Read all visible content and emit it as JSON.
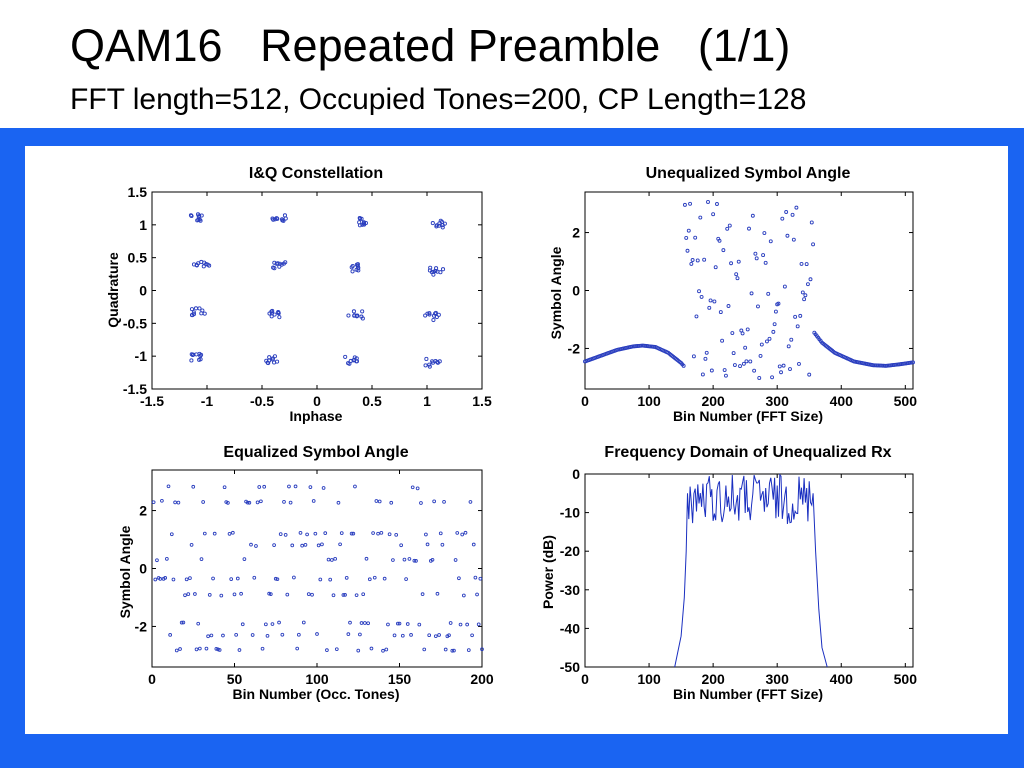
{
  "slide": {
    "title": "QAM16   Repeated Preamble   (1/1)",
    "subtitle": "FFT length=512, Occupied Tones=200, CP Length=128"
  },
  "colors": {
    "frame": "#1a64f2",
    "marker": "#2b3fbf",
    "line": "#1a2fc0"
  },
  "chart_data": [
    {
      "type": "scatter",
      "title": "I&Q Constellation",
      "xlabel": "Inphase",
      "ylabel": "Quadrature",
      "xlim": [
        -1.5,
        1.5
      ],
      "ylim": [
        -1.5,
        1.5
      ],
      "xticks": [
        "-1.5",
        "-1",
        "-0.5",
        "0",
        "0.5",
        "1",
        "1.5"
      ],
      "yticks": [
        "1.5",
        "1",
        "0.5",
        "0",
        "-0.5",
        "-1",
        "-1.5"
      ],
      "grid": false,
      "points_per_cluster": 10,
      "clusters": [
        {
          "x": -1.1,
          "y": 1.1
        },
        {
          "x": -0.35,
          "y": 1.1
        },
        {
          "x": 0.4,
          "y": 1.05
        },
        {
          "x": 1.12,
          "y": 1.02
        },
        {
          "x": -1.05,
          "y": 0.38
        },
        {
          "x": -0.33,
          "y": 0.37
        },
        {
          "x": 0.35,
          "y": 0.35
        },
        {
          "x": 1.08,
          "y": 0.3
        },
        {
          "x": -1.08,
          "y": -0.33
        },
        {
          "x": -0.38,
          "y": -0.35
        },
        {
          "x": 0.35,
          "y": -0.37
        },
        {
          "x": 1.05,
          "y": -0.4
        },
        {
          "x": -1.1,
          "y": -1.02
        },
        {
          "x": -0.4,
          "y": -1.05
        },
        {
          "x": 0.32,
          "y": -1.07
        },
        {
          "x": 1.05,
          "y": -1.1
        }
      ]
    },
    {
      "type": "scatter",
      "title": "Unequalized Symbol Angle",
      "xlabel": "Bin Number (FFT Size)",
      "ylabel": "Symbol Angle",
      "xlim": [
        0,
        512
      ],
      "ylim": [
        -3.4,
        3.4
      ],
      "xticks": [
        "0",
        "100",
        "200",
        "300",
        "400",
        "500"
      ],
      "yticks": [
        "2",
        "0",
        "-2"
      ],
      "grid": false,
      "occupied_bins": [
        156,
        356
      ],
      "notes": "Smooth phase curve outside occupied band; randomly spread symbol angles in [-3.14, 3.14] within occupied band",
      "curve_x": [
        0,
        25,
        50,
        75,
        90,
        110,
        130,
        150,
        156,
        356,
        370,
        390,
        420,
        450,
        470,
        490,
        512
      ],
      "curve_y": [
        -2.45,
        -2.25,
        -2.05,
        -1.93,
        -1.9,
        -1.95,
        -2.15,
        -2.5,
        -2.65,
        -1.4,
        -1.8,
        -2.15,
        -2.45,
        -2.58,
        -2.6,
        -2.55,
        -2.48
      ]
    },
    {
      "type": "scatter",
      "title": "Equalized Symbol Angle",
      "xlabel": "Bin Number (Occ. Tones)",
      "ylabel": "Symbol Angle",
      "xlim": [
        0,
        200
      ],
      "ylim": [
        -3.4,
        3.4
      ],
      "xticks": [
        "0",
        "50",
        "100",
        "150",
        "200"
      ],
      "yticks": [
        "2",
        "0",
        "-2"
      ],
      "grid": false,
      "levels": [
        -2.8,
        -2.3,
        -1.9,
        -0.9,
        -0.35,
        0.3,
        0.8,
        1.2,
        2.3,
        2.8
      ],
      "points": 200
    },
    {
      "type": "line",
      "title": "Frequency Domain of Unequalized Rx",
      "xlabel": "Bin Number (FFT Size)",
      "ylabel": "Power (dB)",
      "xlim": [
        0,
        512
      ],
      "ylim": [
        -50,
        0
      ],
      "xticks": [
        "0",
        "100",
        "200",
        "300",
        "400",
        "500"
      ],
      "yticks": [
        "0",
        "-10",
        "-20",
        "-30",
        "-40",
        "-50"
      ],
      "grid": false,
      "band": [
        160,
        356
      ],
      "band_level_range_db": [
        -13,
        0
      ],
      "skirt_x": [
        140,
        150,
        155,
        158,
        160,
        356,
        360,
        365,
        370,
        378
      ],
      "skirt_y": [
        -50,
        -42,
        -32,
        -20,
        -5,
        -5,
        -20,
        -35,
        -45,
        -50
      ]
    }
  ]
}
